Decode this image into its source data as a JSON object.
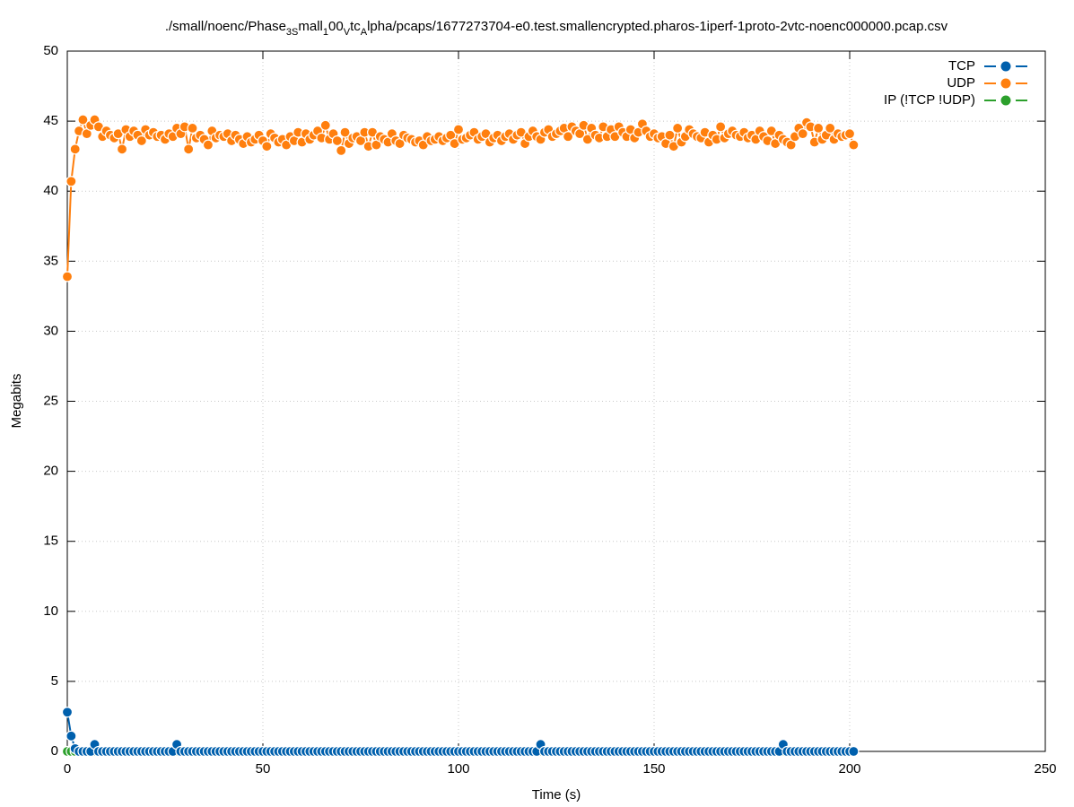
{
  "chart_data": {
    "type": "line",
    "title_parts": [
      "./small/noenc/Phase",
      "3S",
      "mall",
      "1",
      "00",
      "V",
      "tc",
      "A",
      "lpha/pcaps/1677273704-e0.test.smallencrypted.pharos-1iperf-1proto-2vtc-noenc000000.pcap.csv"
    ],
    "xlabel": "Time (s)",
    "ylabel": "Megabits",
    "xlim": [
      0,
      250
    ],
    "xticks": [
      0,
      50,
      100,
      150,
      200,
      250
    ],
    "ylim": [
      0,
      50
    ],
    "yticks": [
      0,
      5,
      10,
      15,
      20,
      25,
      30,
      35,
      40,
      45,
      50
    ],
    "grid": true,
    "legend": "top-right",
    "x": [
      0,
      1,
      2,
      3,
      4,
      5,
      6,
      7,
      8,
      9,
      10,
      11,
      12,
      13,
      14,
      15,
      16,
      17,
      18,
      19,
      20,
      21,
      22,
      23,
      24,
      25,
      26,
      27,
      28,
      29,
      30,
      31,
      32,
      33,
      34,
      35,
      36,
      37,
      38,
      39,
      40,
      41,
      42,
      43,
      44,
      45,
      46,
      47,
      48,
      49,
      50,
      51,
      52,
      53,
      54,
      55,
      56,
      57,
      58,
      59,
      60,
      61,
      62,
      63,
      64,
      65,
      66,
      67,
      68,
      69,
      70,
      71,
      72,
      73,
      74,
      75,
      76,
      77,
      78,
      79,
      80,
      81,
      82,
      83,
      84,
      85,
      86,
      87,
      88,
      89,
      90,
      91,
      92,
      93,
      94,
      95,
      96,
      97,
      98,
      99,
      100,
      101,
      102,
      103,
      104,
      105,
      106,
      107,
      108,
      109,
      110,
      111,
      112,
      113,
      114,
      115,
      116,
      117,
      118,
      119,
      120,
      121,
      122,
      123,
      124,
      125,
      126,
      127,
      128,
      129,
      130,
      131,
      132,
      133,
      134,
      135,
      136,
      137,
      138,
      139,
      140,
      141,
      142,
      143,
      144,
      145,
      146,
      147,
      148,
      149,
      150,
      151,
      152,
      153,
      154,
      155,
      156,
      157,
      158,
      159,
      160,
      161,
      162,
      163,
      164,
      165,
      166,
      167,
      168,
      169,
      170,
      171,
      172,
      173,
      174,
      175,
      176,
      177,
      178,
      179,
      180,
      181,
      182,
      183,
      184,
      185,
      186,
      187,
      188,
      189,
      190,
      191,
      192,
      193,
      194,
      195,
      196,
      197,
      198,
      199,
      200,
      201
    ],
    "series": [
      {
        "name": "TCP",
        "color": "#0060ad",
        "values": [
          2.8,
          1.1,
          0.2,
          0,
          0,
          0,
          0,
          0.5,
          0,
          0,
          0,
          0,
          0,
          0,
          0,
          0,
          0,
          0,
          0,
          0,
          0,
          0,
          0,
          0,
          0,
          0,
          0,
          0,
          0.5,
          0,
          0,
          0,
          0,
          0,
          0,
          0,
          0,
          0,
          0,
          0,
          0,
          0,
          0,
          0,
          0,
          0,
          0,
          0,
          0,
          0,
          0,
          0,
          0,
          0,
          0,
          0,
          0,
          0,
          0,
          0,
          0,
          0,
          0,
          0,
          0,
          0,
          0,
          0,
          0,
          0,
          0,
          0,
          0,
          0,
          0,
          0,
          0,
          0,
          0,
          0,
          0,
          0,
          0,
          0,
          0,
          0,
          0,
          0,
          0,
          0,
          0,
          0,
          0,
          0,
          0,
          0,
          0,
          0,
          0,
          0,
          0,
          0,
          0,
          0,
          0,
          0,
          0,
          0,
          0,
          0,
          0,
          0,
          0,
          0,
          0,
          0,
          0,
          0,
          0,
          0,
          0,
          0.5,
          0,
          0,
          0,
          0,
          0,
          0,
          0,
          0,
          0,
          0,
          0,
          0,
          0,
          0,
          0,
          0,
          0,
          0,
          0,
          0,
          0,
          0,
          0,
          0,
          0,
          0,
          0,
          0,
          0,
          0,
          0,
          0,
          0,
          0,
          0,
          0,
          0,
          0,
          0,
          0,
          0,
          0,
          0,
          0,
          0,
          0,
          0,
          0,
          0,
          0,
          0,
          0,
          0,
          0,
          0,
          0,
          0,
          0,
          0,
          0,
          0,
          0.5,
          0,
          0,
          0,
          0,
          0,
          0,
          0,
          0,
          0,
          0,
          0,
          0,
          0,
          0,
          0,
          0,
          0,
          0
        ]
      },
      {
        "name": "UDP",
        "color": "#ff7f0e",
        "values": [
          33.9,
          40.7,
          43.0,
          44.3,
          45.1,
          44.1,
          44.7,
          45.1,
          44.6,
          43.9,
          44.3,
          44.0,
          43.8,
          44.1,
          43.0,
          44.4,
          43.9,
          44.3,
          44.0,
          43.6,
          44.4,
          44.0,
          44.2,
          43.9,
          44.0,
          43.7,
          44.1,
          43.9,
          44.5,
          44.1,
          44.6,
          43.0,
          44.5,
          43.8,
          44.0,
          43.7,
          43.3,
          44.3,
          43.8,
          44.0,
          43.9,
          44.1,
          43.6,
          44.0,
          43.7,
          43.4,
          43.9,
          43.5,
          43.7,
          44.0,
          43.6,
          43.2,
          44.1,
          43.8,
          43.5,
          43.7,
          43.3,
          43.9,
          43.6,
          44.2,
          43.5,
          44.1,
          43.7,
          44.0,
          44.3,
          43.8,
          44.7,
          43.7,
          44.1,
          43.6,
          42.9,
          44.2,
          43.4,
          43.8,
          43.9,
          43.6,
          44.2,
          43.2,
          44.2,
          43.3,
          43.9,
          43.7,
          43.5,
          44.1,
          43.6,
          43.4,
          44.0,
          43.8,
          43.7,
          43.5,
          43.6,
          43.3,
          43.9,
          43.6,
          43.7,
          43.9,
          43.6,
          43.8,
          44.0,
          43.4,
          44.4,
          43.7,
          43.8,
          44.0,
          44.2,
          43.7,
          43.9,
          44.1,
          43.5,
          43.8,
          44.0,
          43.6,
          43.9,
          44.1,
          43.7,
          44.0,
          44.2,
          43.4,
          43.9,
          44.3,
          43.9,
          43.7,
          44.2,
          44.4,
          43.9,
          44.1,
          44.3,
          44.5,
          43.9,
          44.6,
          44.3,
          44.1,
          44.7,
          43.7,
          44.5,
          44.0,
          43.8,
          44.6,
          43.9,
          44.4,
          43.9,
          44.6,
          44.2,
          43.9,
          44.4,
          43.8,
          44.2,
          44.8,
          44.3,
          43.9,
          44.1,
          43.8,
          43.9,
          43.4,
          44.0,
          43.2,
          44.5,
          43.5,
          43.9,
          44.4,
          44.1,
          43.9,
          43.8,
          44.2,
          43.5,
          44.0,
          43.7,
          44.6,
          43.8,
          44.1,
          44.3,
          44.0,
          43.9,
          44.2,
          43.8,
          44.0,
          43.7,
          44.3,
          43.9,
          43.6,
          44.3,
          43.4,
          44.0,
          43.7,
          43.5,
          43.3,
          43.9,
          44.5,
          44.1,
          44.9,
          44.6,
          43.5,
          44.5,
          43.7,
          44.0,
          44.5,
          43.7,
          44.1,
          43.9,
          44.0,
          44.1,
          43.3
        ]
      },
      {
        "name": "IP (!TCP  !UDP)",
        "color": "#2ca02c",
        "values": [
          0,
          0,
          0,
          0,
          0,
          0,
          0,
          0,
          0,
          0,
          0,
          0,
          0,
          0,
          0,
          0,
          0,
          0,
          0,
          0,
          0,
          0,
          0,
          0,
          0,
          0,
          0,
          0,
          0,
          0,
          0,
          0,
          0,
          0,
          0,
          0,
          0,
          0,
          0,
          0,
          0,
          0,
          0,
          0,
          0,
          0,
          0,
          0,
          0,
          0,
          0,
          0,
          0,
          0,
          0,
          0,
          0,
          0,
          0,
          0,
          0,
          0,
          0,
          0,
          0,
          0,
          0,
          0,
          0,
          0,
          0,
          0,
          0,
          0,
          0,
          0,
          0,
          0,
          0,
          0,
          0,
          0,
          0,
          0,
          0,
          0,
          0,
          0,
          0,
          0,
          0,
          0,
          0,
          0,
          0,
          0,
          0,
          0,
          0,
          0,
          0,
          0,
          0,
          0,
          0,
          0,
          0,
          0,
          0,
          0,
          0,
          0,
          0,
          0,
          0,
          0,
          0,
          0,
          0,
          0,
          0,
          0,
          0,
          0,
          0,
          0,
          0,
          0,
          0,
          0,
          0,
          0,
          0,
          0,
          0,
          0,
          0,
          0,
          0,
          0,
          0,
          0,
          0,
          0,
          0,
          0,
          0,
          0,
          0,
          0,
          0,
          0,
          0,
          0,
          0,
          0,
          0,
          0,
          0,
          0,
          0,
          0,
          0,
          0,
          0,
          0,
          0,
          0,
          0,
          0,
          0,
          0,
          0,
          0,
          0,
          0,
          0,
          0,
          0,
          0,
          0,
          0,
          0,
          0,
          0,
          0,
          0,
          0,
          0,
          0,
          0,
          0,
          0,
          0,
          0,
          0,
          0,
          0,
          0,
          0,
          0,
          0
        ]
      }
    ]
  }
}
